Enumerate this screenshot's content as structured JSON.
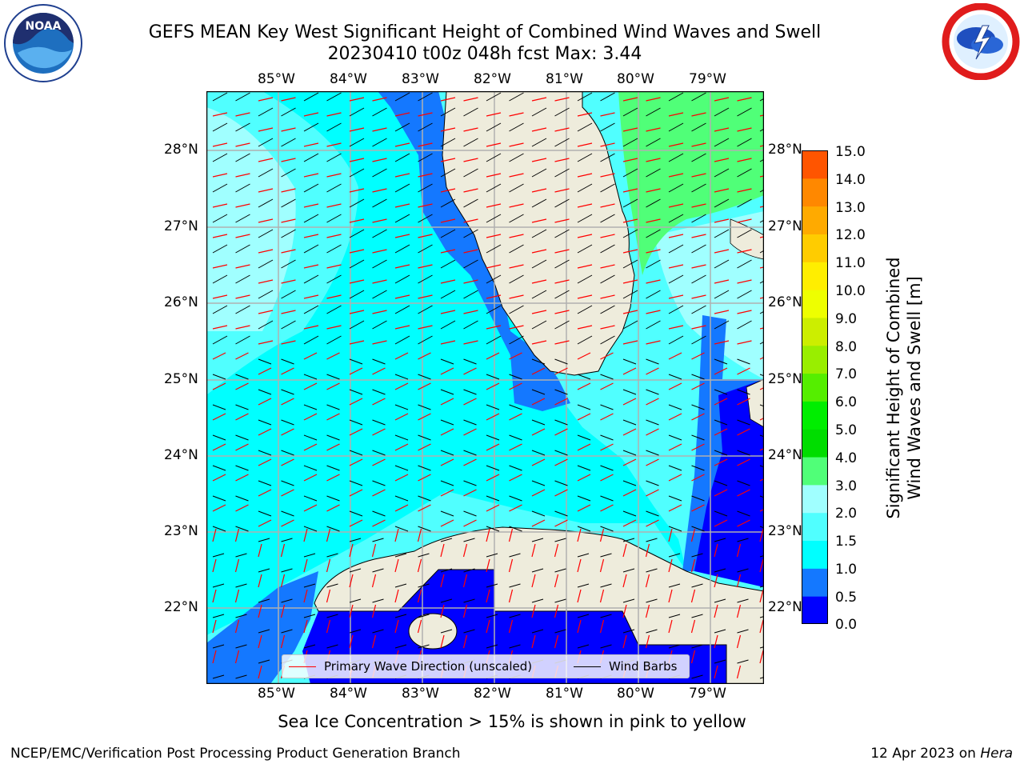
{
  "header": {
    "title_line1": "GEFS MEAN Key West Significant Height of Combined Wind Waves and Swell",
    "title_line2": "20230410 t00z 048h fcst   Max: 3.44"
  },
  "logos": {
    "left_icon": "noaa-logo",
    "left_text": "NOAA",
    "right_icon": "national-weather-service-logo"
  },
  "map": {
    "lon_labels": [
      "85°W",
      "84°W",
      "83°W",
      "82°W",
      "81°W",
      "80°W",
      "79°W"
    ],
    "lat_labels": [
      "28°N",
      "27°N",
      "26°N",
      "25°N",
      "24°N",
      "23°N",
      "22°N"
    ],
    "land_color": "#eeecdc",
    "grid_color": "#b0b0b0"
  },
  "colorbar": {
    "title_line1": "Significant Height of Combined",
    "title_line2": "Wind Waves and Swell [m]",
    "ticks": [
      "0.0",
      "0.5",
      "1.0",
      "1.5",
      "2.0",
      "3.0",
      "4.0",
      "5.0",
      "6.0",
      "7.0",
      "8.0",
      "9.0",
      "10.0",
      "11.0",
      "12.0",
      "13.0",
      "14.0",
      "15.0"
    ],
    "colors": [
      "#0000ff",
      "#1478ff",
      "#00ffff",
      "#50ffff",
      "#a0ffff",
      "#50ff78",
      "#00dd00",
      "#00ee00",
      "#55ee00",
      "#99ee00",
      "#ccee00",
      "#eeff00",
      "#ffee00",
      "#ffcc00",
      "#ffaa00",
      "#ff8800",
      "#ff5500",
      "#ff2200",
      "#ff0000"
    ]
  },
  "legend": {
    "wave_label": "Primary Wave Direction (unscaled)",
    "wind_label": "Wind Barbs",
    "wave_color": "#ff0000",
    "wind_color": "#000000"
  },
  "note": "Sea Ice Concentration > 15% is shown in pink to yellow",
  "footer": {
    "left": "NCEP/EMC/Verification Post Processing Product Generation Branch",
    "right_prefix": "12 Apr 2023 on ",
    "right_host": "Hera"
  }
}
